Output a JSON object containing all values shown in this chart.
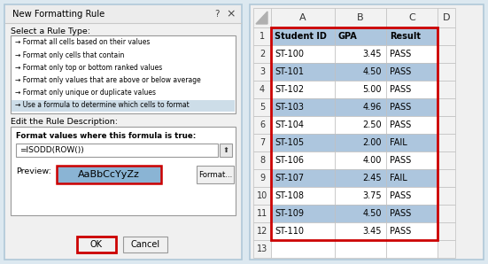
{
  "dialog": {
    "title": "New Formatting Rule",
    "bg_color": "#f0f0f0",
    "border_color": "#b0c8d8",
    "rule_types": [
      "→ Format all cells based on their values",
      "→ Format only cells that contain",
      "→ Format only top or bottom ranked values",
      "→ Format only values that are above or below average",
      "→ Format only unique or duplicate values",
      "→ Use a formula to determine which cells to format"
    ],
    "formula_label": "Format values where this formula is true:",
    "formula_text": "=ISODD(ROW())",
    "preview_text": "AaBbCcYyZz",
    "preview_bg": "#8ab4d4",
    "preview_border": "#cc0000",
    "ok_border": "#cc0000"
  },
  "spreadsheet": {
    "border_color": "#b0c8d8",
    "col_header_bg": "#f2f2f2",
    "row_header_bg": "#f2f2f2",
    "odd_row_bg": "#adc6de",
    "even_row_bg": "#ffffff",
    "data_border_color": "#cc0000",
    "columns": [
      "A",
      "B",
      "C",
      "D"
    ],
    "headers": [
      "Student ID",
      "GPA",
      "Result"
    ],
    "data": [
      [
        "ST-100",
        "3.45",
        "PASS",
        false
      ],
      [
        "ST-101",
        "4.50",
        "PASS",
        true
      ],
      [
        "ST-102",
        "5.00",
        "PASS",
        false
      ],
      [
        "ST-103",
        "4.96",
        "PASS",
        true
      ],
      [
        "ST-104",
        "2.50",
        "PASS",
        false
      ],
      [
        "ST-105",
        "2.00",
        "FAIL",
        true
      ],
      [
        "ST-106",
        "4.00",
        "PASS",
        false
      ],
      [
        "ST-107",
        "2.45",
        "FAIL",
        true
      ],
      [
        "ST-108",
        "3.75",
        "PASS",
        false
      ],
      [
        "ST-109",
        "4.50",
        "PASS",
        true
      ],
      [
        "ST-110",
        "3.45",
        "PASS",
        false
      ]
    ]
  },
  "fig_bg": "#dce8f0",
  "figw": 5.51,
  "figh": 2.98,
  "dpi": 100
}
